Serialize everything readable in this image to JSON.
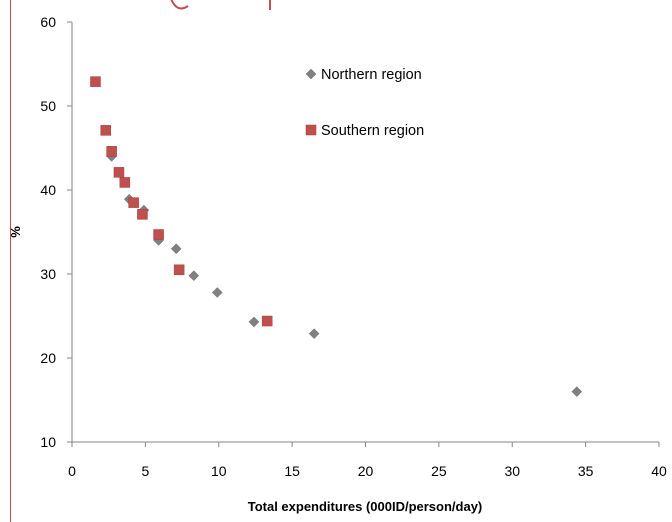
{
  "chart_data": {
    "type": "scatter",
    "title": "",
    "xlabel": "Total expenditures (000ID/person/day)",
    "ylabel": "%",
    "xlim": [
      0,
      40
    ],
    "ylim": [
      10,
      60
    ],
    "xticks": [
      0,
      5,
      10,
      15,
      20,
      25,
      30,
      35,
      40
    ],
    "yticks": [
      10,
      20,
      30,
      40,
      50,
      60
    ],
    "grid": false,
    "legend_position": "top-right",
    "series": [
      {
        "name": "Northern region",
        "marker": "diamond",
        "color": "#808080",
        "points": [
          [
            2.7,
            44.0
          ],
          [
            3.9,
            38.9
          ],
          [
            4.9,
            37.6
          ],
          [
            5.9,
            34.0
          ],
          [
            7.1,
            33.0
          ],
          [
            8.3,
            29.8
          ],
          [
            9.9,
            27.8
          ],
          [
            12.4,
            24.3
          ],
          [
            16.5,
            22.9
          ],
          [
            34.4,
            16.0
          ]
        ]
      },
      {
        "name": "Southern region",
        "marker": "square",
        "color": "#c0504d",
        "points": [
          [
            1.6,
            52.9
          ],
          [
            2.3,
            47.1
          ],
          [
            2.7,
            44.6
          ],
          [
            3.2,
            42.1
          ],
          [
            3.6,
            40.9
          ],
          [
            4.2,
            38.5
          ],
          [
            4.8,
            37.1
          ],
          [
            5.9,
            34.7
          ],
          [
            7.3,
            30.5
          ],
          [
            13.3,
            24.4
          ]
        ]
      }
    ]
  }
}
